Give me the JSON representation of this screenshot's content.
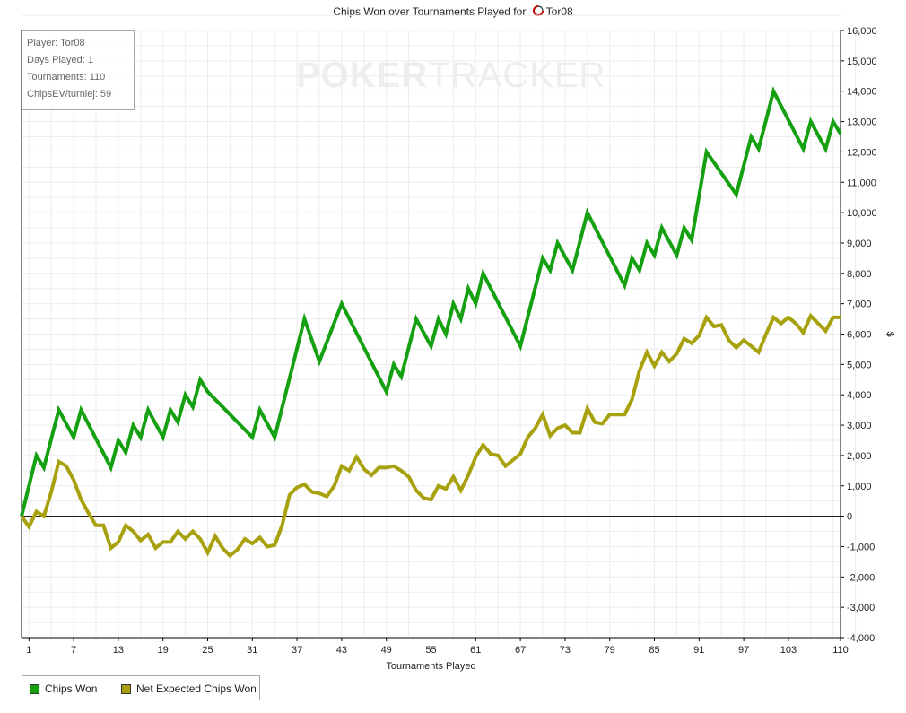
{
  "chart_data": {
    "type": "line",
    "title_prefix": "Chips Won over Tournaments Played for",
    "title_player": "Tor08",
    "xlabel": "Tournaments Played",
    "ylabel": "$",
    "xlim": [
      0,
      110
    ],
    "ylim": [
      -4000,
      16000
    ],
    "x_ticks": [
      1,
      7,
      13,
      19,
      25,
      31,
      37,
      43,
      49,
      55,
      61,
      67,
      73,
      79,
      85,
      91,
      97,
      103,
      110
    ],
    "y_ticks": [
      -4000,
      -3000,
      -2000,
      -1000,
      0,
      1000,
      2000,
      3000,
      4000,
      5000,
      6000,
      7000,
      8000,
      9000,
      10000,
      11000,
      12000,
      13000,
      14000,
      15000,
      16000
    ],
    "y_tick_labels": [
      "-4,000",
      "-3,000",
      "-2,000",
      "-1,000",
      "0",
      "1,000",
      "2,000",
      "3,000",
      "4,000",
      "5,000",
      "6,000",
      "7,000",
      "8,000",
      "9,000",
      "10,000",
      "11,000",
      "12,000",
      "13,000",
      "14,000",
      "15,000",
      "16,000"
    ],
    "grid": true,
    "legend_position": "bottom-left",
    "series": [
      {
        "name": "Chips Won",
        "color": "#14a010",
        "x": [
          0,
          2,
          3,
          5,
          7,
          8,
          12,
          13,
          14,
          15,
          16,
          17,
          19,
          20,
          21,
          22,
          23,
          24,
          25,
          31,
          32,
          34,
          38,
          40,
          43,
          49,
          50,
          51,
          53,
          55,
          56,
          57,
          58,
          59,
          60,
          61,
          62,
          67,
          70,
          71,
          72,
          74,
          76,
          81,
          82,
          83,
          84,
          85,
          86,
          88,
          89,
          90,
          92,
          96,
          98,
          99,
          101,
          105,
          106,
          108,
          109,
          110
        ],
        "values": [
          0,
          2000,
          1600,
          3500,
          2600,
          3500,
          1600,
          2500,
          2100,
          3000,
          2600,
          3500,
          2600,
          3500,
          3100,
          4000,
          3600,
          4500,
          4100,
          2600,
          3500,
          2600,
          6500,
          5100,
          7000,
          4100,
          5000,
          4600,
          6500,
          5600,
          6500,
          6000,
          7000,
          6500,
          7500,
          7000,
          8000,
          5600,
          8500,
          8100,
          9000,
          8100,
          10000,
          7600,
          8500,
          8100,
          9000,
          8600,
          9500,
          8600,
          9500,
          9100,
          12000,
          10600,
          12500,
          12100,
          14000,
          12100,
          13000,
          12100,
          13000,
          12600
        ]
      },
      {
        "name": "Net Expected Chips Won",
        "color": "#a8a10e",
        "x": [
          0,
          1,
          2,
          3,
          4,
          5,
          6,
          7,
          8,
          9,
          10,
          11,
          12,
          13,
          14,
          15,
          16,
          17,
          18,
          19,
          20,
          21,
          22,
          23,
          24,
          25,
          26,
          27,
          28,
          29,
          30,
          31,
          32,
          33,
          34,
          35,
          36,
          37,
          38,
          39,
          40,
          41,
          42,
          43,
          44,
          45,
          46,
          47,
          48,
          49,
          50,
          51,
          52,
          53,
          54,
          55,
          56,
          57,
          58,
          59,
          60,
          61,
          62,
          63,
          64,
          65,
          66,
          67,
          68,
          69,
          70,
          71,
          72,
          73,
          74,
          75,
          76,
          77,
          78,
          79,
          80,
          81,
          82,
          83,
          84,
          85,
          86,
          87,
          88,
          89,
          90,
          91,
          92,
          93,
          94,
          95,
          96,
          97,
          98,
          99,
          100,
          101,
          102,
          103,
          104,
          105,
          106,
          107,
          108,
          109,
          110
        ],
        "values": [
          0,
          -350,
          150,
          0,
          800,
          1800,
          1650,
          1200,
          550,
          100,
          -300,
          -300,
          -1050,
          -850,
          -300,
          -500,
          -800,
          -600,
          -1050,
          -850,
          -850,
          -500,
          -750,
          -500,
          -750,
          -1200,
          -650,
          -1050,
          -1300,
          -1100,
          -750,
          -900,
          -700,
          -1000,
          -950,
          -300,
          700,
          950,
          1050,
          800,
          750,
          650,
          1000,
          1650,
          1500,
          1950,
          1550,
          1350,
          1600,
          1600,
          1650,
          1500,
          1300,
          850,
          600,
          550,
          1000,
          900,
          1300,
          850,
          1350,
          1950,
          2350,
          2050,
          2000,
          1650,
          1850,
          2050,
          2600,
          2900,
          3350,
          2650,
          2900,
          3000,
          2750,
          2750,
          3550,
          3100,
          3050,
          3350,
          3350,
          3350,
          3850,
          4800,
          5400,
          4950,
          5400,
          5100,
          5350,
          5850,
          5700,
          5950,
          6550,
          6250,
          6300,
          5800,
          5550,
          5800,
          5600,
          5400,
          6000,
          6550,
          6350,
          6550,
          6350,
          6050,
          6600,
          6350,
          6100,
          6550,
          6550
        ]
      }
    ]
  },
  "stats": {
    "player": "Player: Tor08",
    "days_played": "Days Played: 1",
    "tournaments": "Tournaments: 110",
    "chips_ev": "ChipsEV/turniej: 59"
  },
  "watermark": {
    "poker": "POKER",
    "tracker": "TRACKER"
  },
  "colors": {
    "grid": "#ececec",
    "axis": "#000000",
    "zero_line": "#000000"
  }
}
